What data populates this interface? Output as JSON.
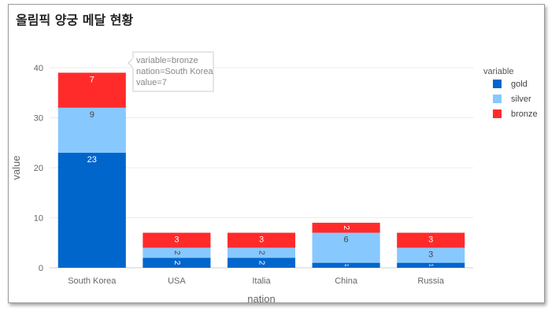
{
  "title": "올림픽 양궁 메달 현황",
  "chart_data": {
    "type": "bar",
    "stacked": true,
    "categories": [
      "South Korea",
      "USA",
      "Italia",
      "China",
      "Russia"
    ],
    "series": [
      {
        "name": "gold",
        "color": "#0066cc",
        "values": [
          23,
          2,
          2,
          1,
          1
        ]
      },
      {
        "name": "silver",
        "color": "#87c8ff",
        "values": [
          9,
          2,
          2,
          6,
          3
        ]
      },
      {
        "name": "bronze",
        "color": "#ff2b2b",
        "values": [
          7,
          3,
          3,
          2,
          3
        ]
      }
    ],
    "xlabel": "nation",
    "ylabel": "value",
    "ylim": [
      0,
      40
    ],
    "yticks": [
      0,
      10,
      20,
      30,
      40
    ],
    "legend_title": "variable",
    "legend_position": "right",
    "grid": true,
    "tooltip": {
      "lines": [
        "variable=bronze",
        "nation=South Korea",
        "value=7"
      ]
    }
  }
}
